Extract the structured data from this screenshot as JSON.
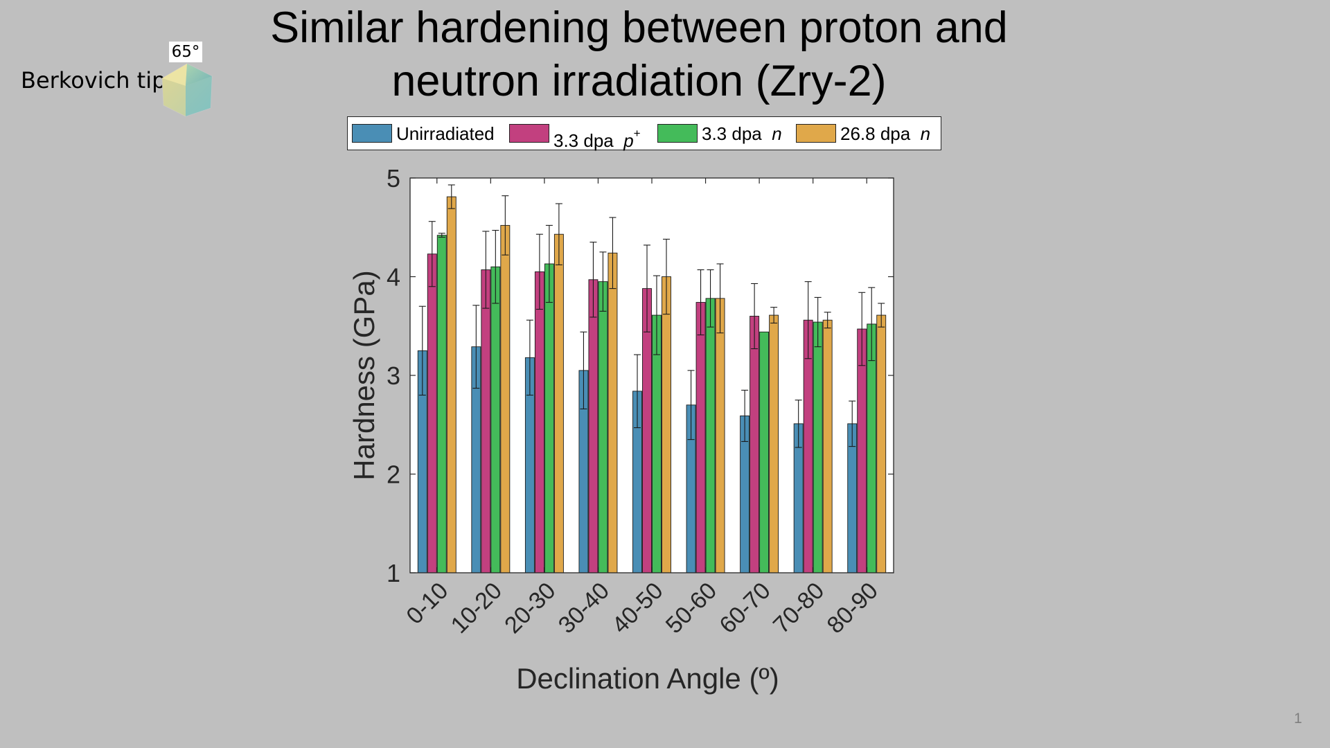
{
  "slide": {
    "title": "Similar hardening between proton and\nneutron irradiation (Zry-2)",
    "tip_label": "Berkovich tip",
    "tip_angle": "65°",
    "tip_icon": "berkovich-pyramid-icon",
    "page_number": "1"
  },
  "legend": {
    "items": [
      {
        "text": "Unirradiated",
        "superscript": "",
        "italic": "",
        "color": "#4a8eb5"
      },
      {
        "text": "3.3 dpa",
        "superscript": "+",
        "italic": "p",
        "color": "#c2407f"
      },
      {
        "text": "3.3 dpa",
        "superscript": "",
        "italic": "n",
        "color": "#44bb5a"
      },
      {
        "text": "26.8 dpa",
        "superscript": "",
        "italic": "n",
        "color": "#e0a84a"
      }
    ]
  },
  "chart_data": {
    "type": "bar",
    "title": "",
    "xlabel": "Declination Angle (º)",
    "ylabel": "Hardness (GPa)",
    "ylim": [
      1,
      5
    ],
    "yticks": [
      "1",
      "2",
      "3",
      "4",
      "5"
    ],
    "categories": [
      "0-10",
      "10-20",
      "20-30",
      "30-40",
      "40-50",
      "50-60",
      "60-70",
      "70-80",
      "80-90"
    ],
    "series": [
      {
        "name": "Unirradiated",
        "color": "#4a8eb5",
        "values": [
          3.25,
          3.29,
          3.18,
          3.05,
          2.84,
          2.7,
          2.59,
          2.51,
          2.51
        ],
        "errors": [
          0.45,
          0.42,
          0.38,
          0.39,
          0.37,
          0.35,
          0.26,
          0.24,
          0.23
        ]
      },
      {
        "name": "3.3 dpa p+",
        "color": "#c2407f",
        "values": [
          4.23,
          4.07,
          4.05,
          3.97,
          3.88,
          3.74,
          3.6,
          3.56,
          3.47
        ],
        "errors": [
          0.33,
          0.39,
          0.38,
          0.38,
          0.44,
          0.33,
          0.33,
          0.39,
          0.37
        ]
      },
      {
        "name": "3.3 dpa n",
        "color": "#44bb5a",
        "values": [
          4.42,
          4.1,
          4.13,
          3.95,
          3.61,
          3.78,
          3.44,
          3.54,
          3.52
        ],
        "errors": [
          0.02,
          0.37,
          0.39,
          0.3,
          0.4,
          0.29,
          0.0,
          0.25,
          0.37
        ]
      },
      {
        "name": "26.8 dpa n",
        "color": "#e0a84a",
        "values": [
          4.81,
          4.52,
          4.43,
          4.24,
          4.0,
          3.78,
          3.61,
          3.56,
          3.61
        ],
        "errors": [
          0.12,
          0.3,
          0.31,
          0.36,
          0.38,
          0.35,
          0.08,
          0.08,
          0.12
        ]
      }
    ],
    "grid": false,
    "legend_position": "top"
  }
}
